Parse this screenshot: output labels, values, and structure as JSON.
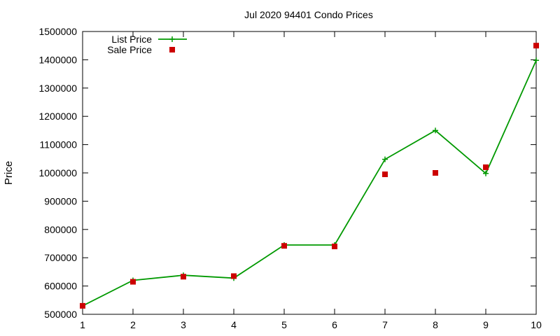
{
  "chart_data": {
    "type": "line",
    "title": "Jul 2020 94401 Condo Prices",
    "xlabel": "",
    "ylabel": "Price",
    "x": [
      1,
      2,
      3,
      4,
      5,
      6,
      7,
      8,
      9,
      10
    ],
    "xlim": [
      1,
      10
    ],
    "ylim": [
      500000,
      1500000
    ],
    "xticks": [
      1,
      2,
      3,
      4,
      5,
      6,
      7,
      8,
      9,
      10
    ],
    "yticks": [
      500000,
      600000,
      700000,
      800000,
      900000,
      1000000,
      1100000,
      1200000,
      1300000,
      1400000,
      1500000
    ],
    "grid": false,
    "legend_position": "top-left",
    "series": [
      {
        "name": "List Price",
        "style": "line-with-plus-markers",
        "color": "#009900",
        "values": [
          530000,
          620000,
          638000,
          628000,
          745000,
          745000,
          1048000,
          1150000,
          998000,
          1398000
        ]
      },
      {
        "name": "Sale Price",
        "style": "square-markers",
        "color": "#cc0000",
        "values": [
          530000,
          615000,
          633000,
          635000,
          742000,
          740000,
          995000,
          1000000,
          1020000,
          1450000
        ]
      }
    ]
  }
}
